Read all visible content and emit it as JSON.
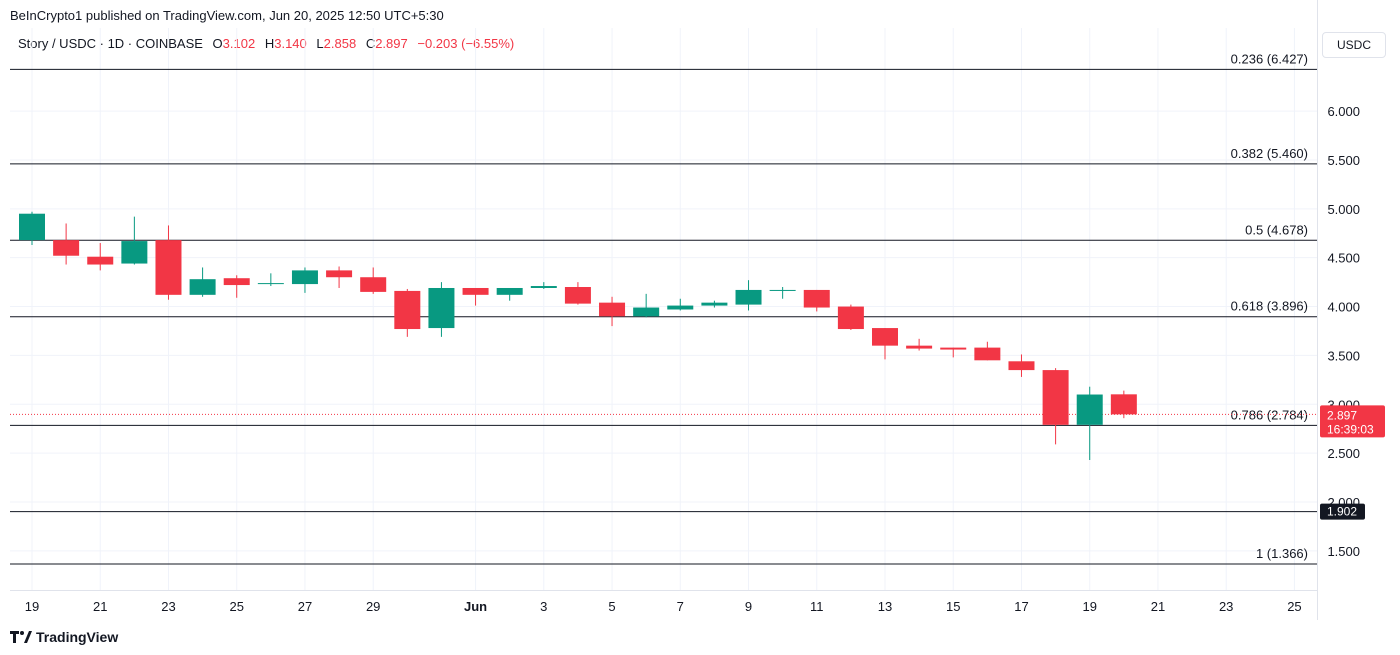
{
  "header": {
    "publisher": "BeInCrypto1 published on TradingView.com, Jun 20, 2025 12:50 UTC+5:30"
  },
  "legend": {
    "symbol": "Story / USDC · 1D · COINBASE",
    "open_label": "O",
    "open": "3.102",
    "high_label": "H",
    "high": "3.140",
    "low_label": "L",
    "low": "2.858",
    "close_label": "C",
    "close": "2.897",
    "change": "−0.203 (−6.55%)"
  },
  "currency_button": "USDC",
  "footer": {
    "brand": "TradingView"
  },
  "colors": {
    "up": "#089981",
    "down": "#f23645",
    "axis_text": "#131722",
    "grid": "#f0f3fa"
  },
  "chart_data": {
    "type": "candlestick",
    "y_range": [
      1.1,
      6.85
    ],
    "y_ticks": [
      1.5,
      2.0,
      2.5,
      3.0,
      3.5,
      4.0,
      4.5,
      5.0,
      5.5,
      6.0
    ],
    "y_tick_labels": [
      "1.500",
      "2.000",
      "2.500",
      "3.000",
      "3.500",
      "4.000",
      "4.500",
      "5.000",
      "5.500",
      "6.000"
    ],
    "x_ticks": [
      {
        "date": "2025-05-19",
        "label": "19"
      },
      {
        "date": "2025-05-21",
        "label": "21"
      },
      {
        "date": "2025-05-23",
        "label": "23"
      },
      {
        "date": "2025-05-25",
        "label": "25"
      },
      {
        "date": "2025-05-27",
        "label": "27"
      },
      {
        "date": "2025-05-29",
        "label": "29"
      },
      {
        "date": "2025-06-01",
        "label": "Jun"
      },
      {
        "date": "2025-06-03",
        "label": "3"
      },
      {
        "date": "2025-06-05",
        "label": "5"
      },
      {
        "date": "2025-06-07",
        "label": "7"
      },
      {
        "date": "2025-06-09",
        "label": "9"
      },
      {
        "date": "2025-06-11",
        "label": "11"
      },
      {
        "date": "2025-06-13",
        "label": "13"
      },
      {
        "date": "2025-06-15",
        "label": "15"
      },
      {
        "date": "2025-06-17",
        "label": "17"
      },
      {
        "date": "2025-06-19",
        "label": "19"
      },
      {
        "date": "2025-06-21",
        "label": "21"
      },
      {
        "date": "2025-06-23",
        "label": "23"
      },
      {
        "date": "2025-06-25",
        "label": "25"
      }
    ],
    "x_range": [
      "2025-05-19",
      "2025-06-25"
    ],
    "candles": [
      {
        "date": "2025-05-19",
        "o": 4.68,
        "h": 4.97,
        "l": 4.63,
        "c": 4.95
      },
      {
        "date": "2025-05-20",
        "o": 4.68,
        "h": 4.85,
        "l": 4.43,
        "c": 4.52
      },
      {
        "date": "2025-05-21",
        "o": 4.51,
        "h": 4.65,
        "l": 4.37,
        "c": 4.43
      },
      {
        "date": "2025-05-22",
        "o": 4.44,
        "h": 4.92,
        "l": 4.43,
        "c": 4.67
      },
      {
        "date": "2025-05-23",
        "o": 4.68,
        "h": 4.83,
        "l": 4.07,
        "c": 4.12
      },
      {
        "date": "2025-05-24",
        "o": 4.12,
        "h": 4.4,
        "l": 4.1,
        "c": 4.28
      },
      {
        "date": "2025-05-25",
        "o": 4.29,
        "h": 4.32,
        "l": 4.09,
        "c": 4.22
      },
      {
        "date": "2025-05-26",
        "o": 4.23,
        "h": 4.34,
        "l": 4.21,
        "c": 4.24
      },
      {
        "date": "2025-05-27",
        "o": 4.23,
        "h": 4.4,
        "l": 4.14,
        "c": 4.37
      },
      {
        "date": "2025-05-28",
        "o": 4.37,
        "h": 4.41,
        "l": 4.19,
        "c": 4.3
      },
      {
        "date": "2025-05-29",
        "o": 4.3,
        "h": 4.4,
        "l": 4.13,
        "c": 4.15
      },
      {
        "date": "2025-05-30",
        "o": 4.16,
        "h": 4.18,
        "l": 3.69,
        "c": 3.77
      },
      {
        "date": "2025-05-31",
        "o": 3.78,
        "h": 4.25,
        "l": 3.69,
        "c": 4.19
      },
      {
        "date": "2025-06-01",
        "o": 4.19,
        "h": 4.19,
        "l": 4.01,
        "c": 4.12
      },
      {
        "date": "2025-06-02",
        "o": 4.12,
        "h": 4.19,
        "l": 4.06,
        "c": 4.19
      },
      {
        "date": "2025-06-03",
        "o": 4.19,
        "h": 4.25,
        "l": 4.18,
        "c": 4.21
      },
      {
        "date": "2025-06-04",
        "o": 4.2,
        "h": 4.25,
        "l": 4.02,
        "c": 4.03
      },
      {
        "date": "2025-06-05",
        "o": 4.04,
        "h": 4.1,
        "l": 3.8,
        "c": 3.9
      },
      {
        "date": "2025-06-06",
        "o": 3.9,
        "h": 4.13,
        "l": 3.89,
        "c": 3.99
      },
      {
        "date": "2025-06-07",
        "o": 3.97,
        "h": 4.08,
        "l": 3.96,
        "c": 4.01
      },
      {
        "date": "2025-06-08",
        "o": 4.01,
        "h": 4.06,
        "l": 3.99,
        "c": 4.04
      },
      {
        "date": "2025-06-09",
        "o": 4.02,
        "h": 4.27,
        "l": 3.96,
        "c": 4.17
      },
      {
        "date": "2025-06-10",
        "o": 4.17,
        "h": 4.2,
        "l": 4.08,
        "c": 4.17
      },
      {
        "date": "2025-06-11",
        "o": 4.17,
        "h": 4.17,
        "l": 3.95,
        "c": 3.99
      },
      {
        "date": "2025-06-12",
        "o": 4.0,
        "h": 4.02,
        "l": 3.76,
        "c": 3.77
      },
      {
        "date": "2025-06-13",
        "o": 3.78,
        "h": 3.78,
        "l": 3.46,
        "c": 3.6
      },
      {
        "date": "2025-06-14",
        "o": 3.6,
        "h": 3.67,
        "l": 3.55,
        "c": 3.57
      },
      {
        "date": "2025-06-15",
        "o": 3.58,
        "h": 3.58,
        "l": 3.48,
        "c": 3.56
      },
      {
        "date": "2025-06-16",
        "o": 3.58,
        "h": 3.64,
        "l": 3.45,
        "c": 3.45
      },
      {
        "date": "2025-06-17",
        "o": 3.44,
        "h": 3.51,
        "l": 3.28,
        "c": 3.35
      },
      {
        "date": "2025-06-18",
        "o": 3.35,
        "h": 3.37,
        "l": 2.59,
        "c": 2.79
      },
      {
        "date": "2025-06-19",
        "o": 2.79,
        "h": 3.18,
        "l": 2.43,
        "c": 3.1
      },
      {
        "date": "2025-06-20",
        "o": 3.102,
        "h": 3.14,
        "l": 2.858,
        "c": 2.897
      }
    ],
    "fib_levels": [
      {
        "label": "0.236 (6.427)",
        "price": 6.427
      },
      {
        "label": "0.382 (5.460)",
        "price": 5.46
      },
      {
        "label": "0.5 (4.678)",
        "price": 4.678
      },
      {
        "label": "0.618 (3.896)",
        "price": 3.896
      },
      {
        "label": "0.786 (2.784)",
        "price": 2.784
      },
      {
        "label": "1 (1.366)",
        "price": 1.366
      }
    ],
    "horizontal_line": {
      "price": 1.902,
      "label": "1.902"
    },
    "last_price": {
      "price": 2.897,
      "label": "2.897",
      "countdown": "16:39:03"
    }
  }
}
